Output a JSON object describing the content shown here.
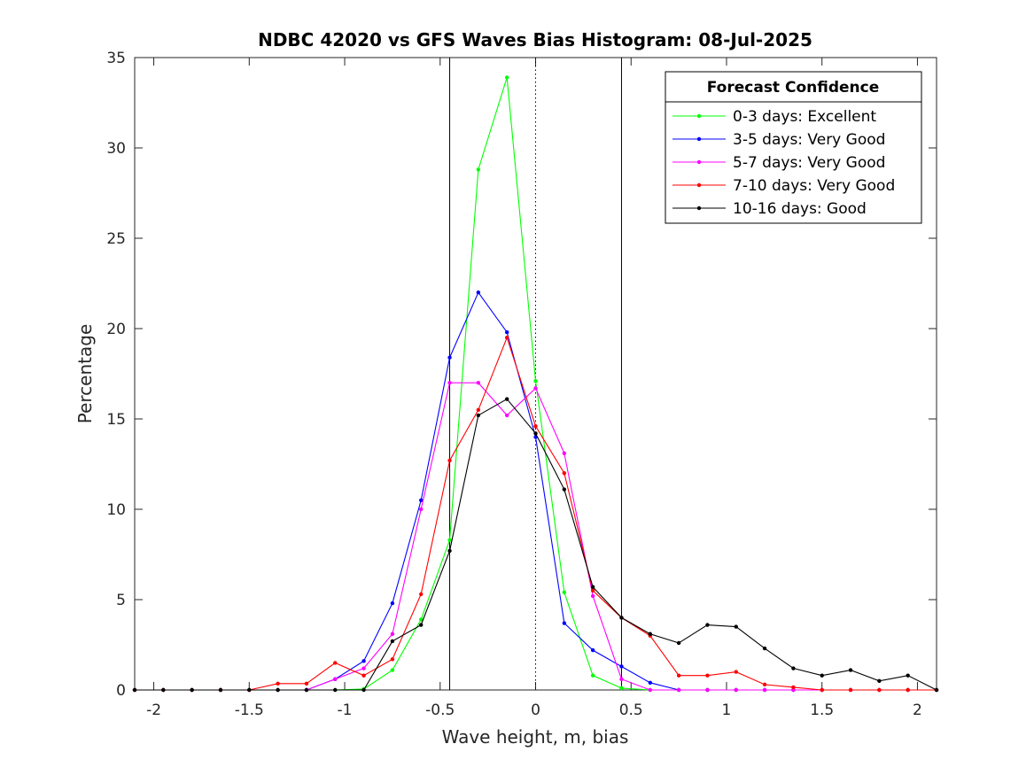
{
  "chart_data": {
    "type": "line",
    "title": "NDBC 42020 vs GFS Waves Bias Histogram: 08-Jul-2025",
    "xlabel": "Wave height, m, bias",
    "ylabel": "Percentage",
    "xlim": [
      -2.1,
      2.1
    ],
    "ylim": [
      0,
      35
    ],
    "x_ticks": [
      -2,
      -1.5,
      -1,
      -0.5,
      0,
      0.5,
      1,
      1.5,
      2
    ],
    "x_tick_labels": [
      "-2",
      "-1.5",
      "-1",
      "-0.5",
      "0",
      "0.5",
      "1",
      "1.5",
      "2"
    ],
    "y_ticks": [
      0,
      5,
      10,
      15,
      20,
      25,
      30,
      35
    ],
    "y_tick_labels": [
      "0",
      "5",
      "10",
      "15",
      "20",
      "25",
      "30",
      "35"
    ],
    "grid": false,
    "vertical_lines": [
      {
        "x": -0.45,
        "style": "solid",
        "color": "#000000"
      },
      {
        "x": 0,
        "style": "dotted",
        "color": "#000000"
      },
      {
        "x": 0.45,
        "style": "solid",
        "color": "#000000"
      }
    ],
    "legend": {
      "title": "Forecast Confidence",
      "position": "top-right"
    },
    "x": [
      -2.1,
      -1.95,
      -1.8,
      -1.65,
      -1.5,
      -1.35,
      -1.2,
      -1.05,
      -0.9,
      -0.75,
      -0.6,
      -0.45,
      -0.3,
      -0.15,
      0,
      0.15,
      0.3,
      0.45,
      0.6,
      0.75,
      0.9,
      1.05,
      1.2,
      1.35,
      1.5,
      1.65,
      1.8,
      1.95,
      2.1
    ],
    "series": [
      {
        "name": "0-3 days: Excellent",
        "color": "#00ff00",
        "values": [
          0,
          0,
          0,
          0,
          0,
          0,
          0,
          0,
          0.05,
          1.1,
          3.9,
          8.3,
          28.8,
          33.9,
          17.1,
          5.4,
          0.8,
          0.1,
          0,
          0,
          0,
          0,
          0,
          0,
          0,
          0,
          0,
          0,
          0
        ]
      },
      {
        "name": "3-5 days: Very Good",
        "color": "#0000ff",
        "values": [
          0,
          0,
          0,
          0,
          0,
          0,
          0,
          0.6,
          1.6,
          4.8,
          10.5,
          18.4,
          22.0,
          19.8,
          14.0,
          3.7,
          2.2,
          1.3,
          0.4,
          0,
          0,
          0,
          0,
          0,
          0,
          0,
          0,
          0,
          0
        ]
      },
      {
        "name": "5-7 days: Very Good",
        "color": "#ff00ff",
        "values": [
          0,
          0,
          0,
          0,
          0,
          0,
          0,
          0.6,
          1.2,
          3.1,
          10.0,
          17.0,
          17.0,
          15.2,
          16.7,
          13.1,
          5.2,
          0.6,
          0,
          0,
          0,
          0,
          0,
          0,
          0,
          0,
          0,
          0,
          0
        ]
      },
      {
        "name": "7-10 days: Very Good",
        "color": "#ff0000",
        "values": [
          0,
          0,
          0,
          0,
          0,
          0.35,
          0.35,
          1.5,
          0.8,
          1.7,
          5.3,
          12.7,
          15.5,
          19.5,
          14.6,
          12.0,
          5.5,
          4.0,
          3.0,
          0.8,
          0.8,
          1.0,
          0.3,
          0.15,
          0,
          0,
          0,
          0,
          0
        ]
      },
      {
        "name": "10-16 days: Good",
        "color": "#000000",
        "values": [
          0,
          0,
          0,
          0,
          0,
          0,
          0,
          0,
          0,
          2.7,
          3.6,
          7.7,
          15.2,
          16.1,
          14.2,
          11.1,
          5.7,
          4.0,
          3.1,
          2.6,
          3.6,
          3.5,
          2.3,
          1.2,
          0.8,
          1.1,
          0.5,
          0.8,
          0
        ]
      }
    ]
  }
}
